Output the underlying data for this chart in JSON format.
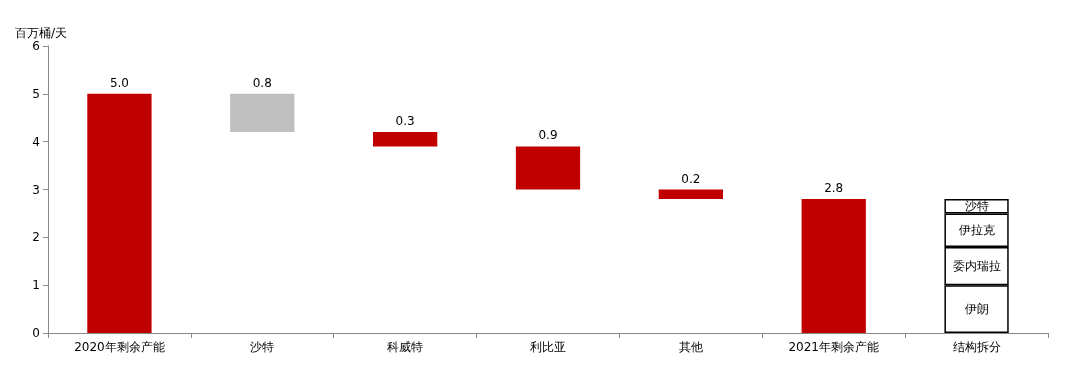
{
  "chart_data": {
    "type": "bar",
    "ylabel": "百万桶/天",
    "categories": [
      "2020年剩余产能",
      "沙特",
      "科威特",
      "利比亚",
      "其他",
      "2021年剩余产能",
      "结构拆分"
    ],
    "stacked": true,
    "ylim": [
      0,
      6
    ],
    "yticks": [
      0,
      1,
      2,
      3,
      4,
      5,
      6
    ],
    "grid": false,
    "legend": false,
    "series": [
      {
        "values": [
          5.0,
          0.8,
          0.3,
          0.9,
          0.2,
          2.8,
          null
        ],
        "base": [
          0,
          4.2,
          3.9,
          3.0,
          2.8,
          0,
          null
        ],
        "colors": [
          "#c00000",
          "#bfbfbf",
          "#c00000",
          "#c00000",
          "#c00000",
          "#c00000",
          null
        ],
        "value_labels": [
          "5.0",
          "0.8",
          "0.3",
          "0.9",
          "0.2",
          "2.8",
          null
        ]
      },
      {
        "name": "伊朗",
        "color": "#ffffff",
        "values": [
          null,
          null,
          null,
          null,
          null,
          null,
          1.0
        ]
      },
      {
        "name": "委内瑞拉",
        "color": "#ffffff",
        "values": [
          null,
          null,
          null,
          null,
          null,
          null,
          0.8
        ]
      },
      {
        "name": "伊拉克",
        "color": "#ffffff",
        "values": [
          null,
          null,
          null,
          null,
          null,
          null,
          0.7
        ]
      },
      {
        "name": "沙特",
        "color": "#ffffff",
        "values": [
          null,
          null,
          null,
          null,
          null,
          null,
          0.3
        ]
      }
    ]
  }
}
